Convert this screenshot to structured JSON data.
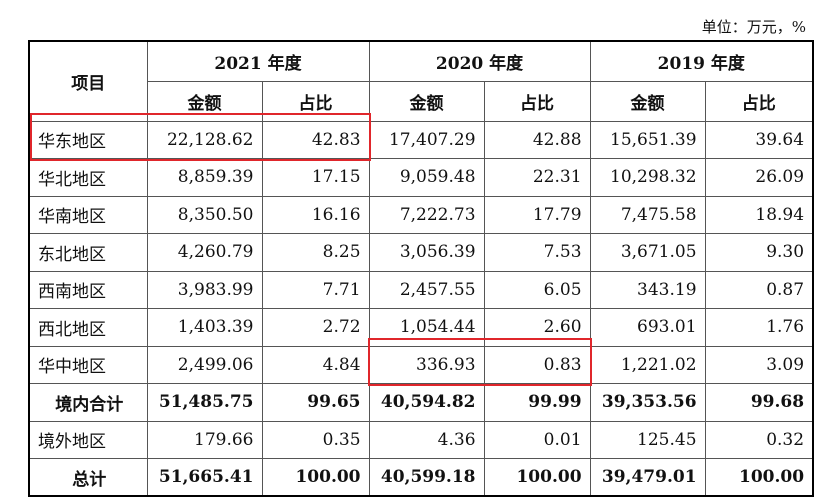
{
  "unit_label": "单位：万元，%",
  "header": {
    "item": "项目",
    "years": [
      "2021 年度",
      "2020 年度",
      "2019 年度"
    ],
    "amount": "金额",
    "ratio": "占比"
  },
  "rows": [
    {
      "name": "华东地区",
      "v": [
        "22,128.62",
        "42.83",
        "17,407.29",
        "42.88",
        "15,651.39",
        "39.64"
      ]
    },
    {
      "name": "华北地区",
      "v": [
        "8,859.39",
        "17.15",
        "9,059.48",
        "22.31",
        "10,298.32",
        "26.09"
      ]
    },
    {
      "name": "华南地区",
      "v": [
        "8,350.50",
        "16.16",
        "7,222.73",
        "17.79",
        "7,475.58",
        "18.94"
      ]
    },
    {
      "name": "东北地区",
      "v": [
        "4,260.79",
        "8.25",
        "3,056.39",
        "7.53",
        "3,671.05",
        "9.30"
      ]
    },
    {
      "name": "西南地区",
      "v": [
        "3,983.99",
        "7.71",
        "2,457.55",
        "6.05",
        "343.19",
        "0.87"
      ]
    },
    {
      "name": "西北地区",
      "v": [
        "1,403.39",
        "2.72",
        "1,054.44",
        "2.60",
        "693.01",
        "1.76"
      ]
    },
    {
      "name": "华中地区",
      "v": [
        "2,499.06",
        "4.84",
        "336.93",
        "0.83",
        "1,221.02",
        "3.09"
      ]
    },
    {
      "name": "境内合计",
      "v": [
        "51,485.75",
        "99.65",
        "40,594.82",
        "99.99",
        "39,353.56",
        "99.68"
      ]
    },
    {
      "name": "境外地区",
      "v": [
        "179.66",
        "0.35",
        "4.36",
        "0.01",
        "125.45",
        "0.32"
      ]
    },
    {
      "name": "总计",
      "v": [
        "51,665.41",
        "100.00",
        "40,599.18",
        "100.00",
        "39,479.01",
        "100.00"
      ]
    }
  ],
  "highlight_color": "#e0262b"
}
